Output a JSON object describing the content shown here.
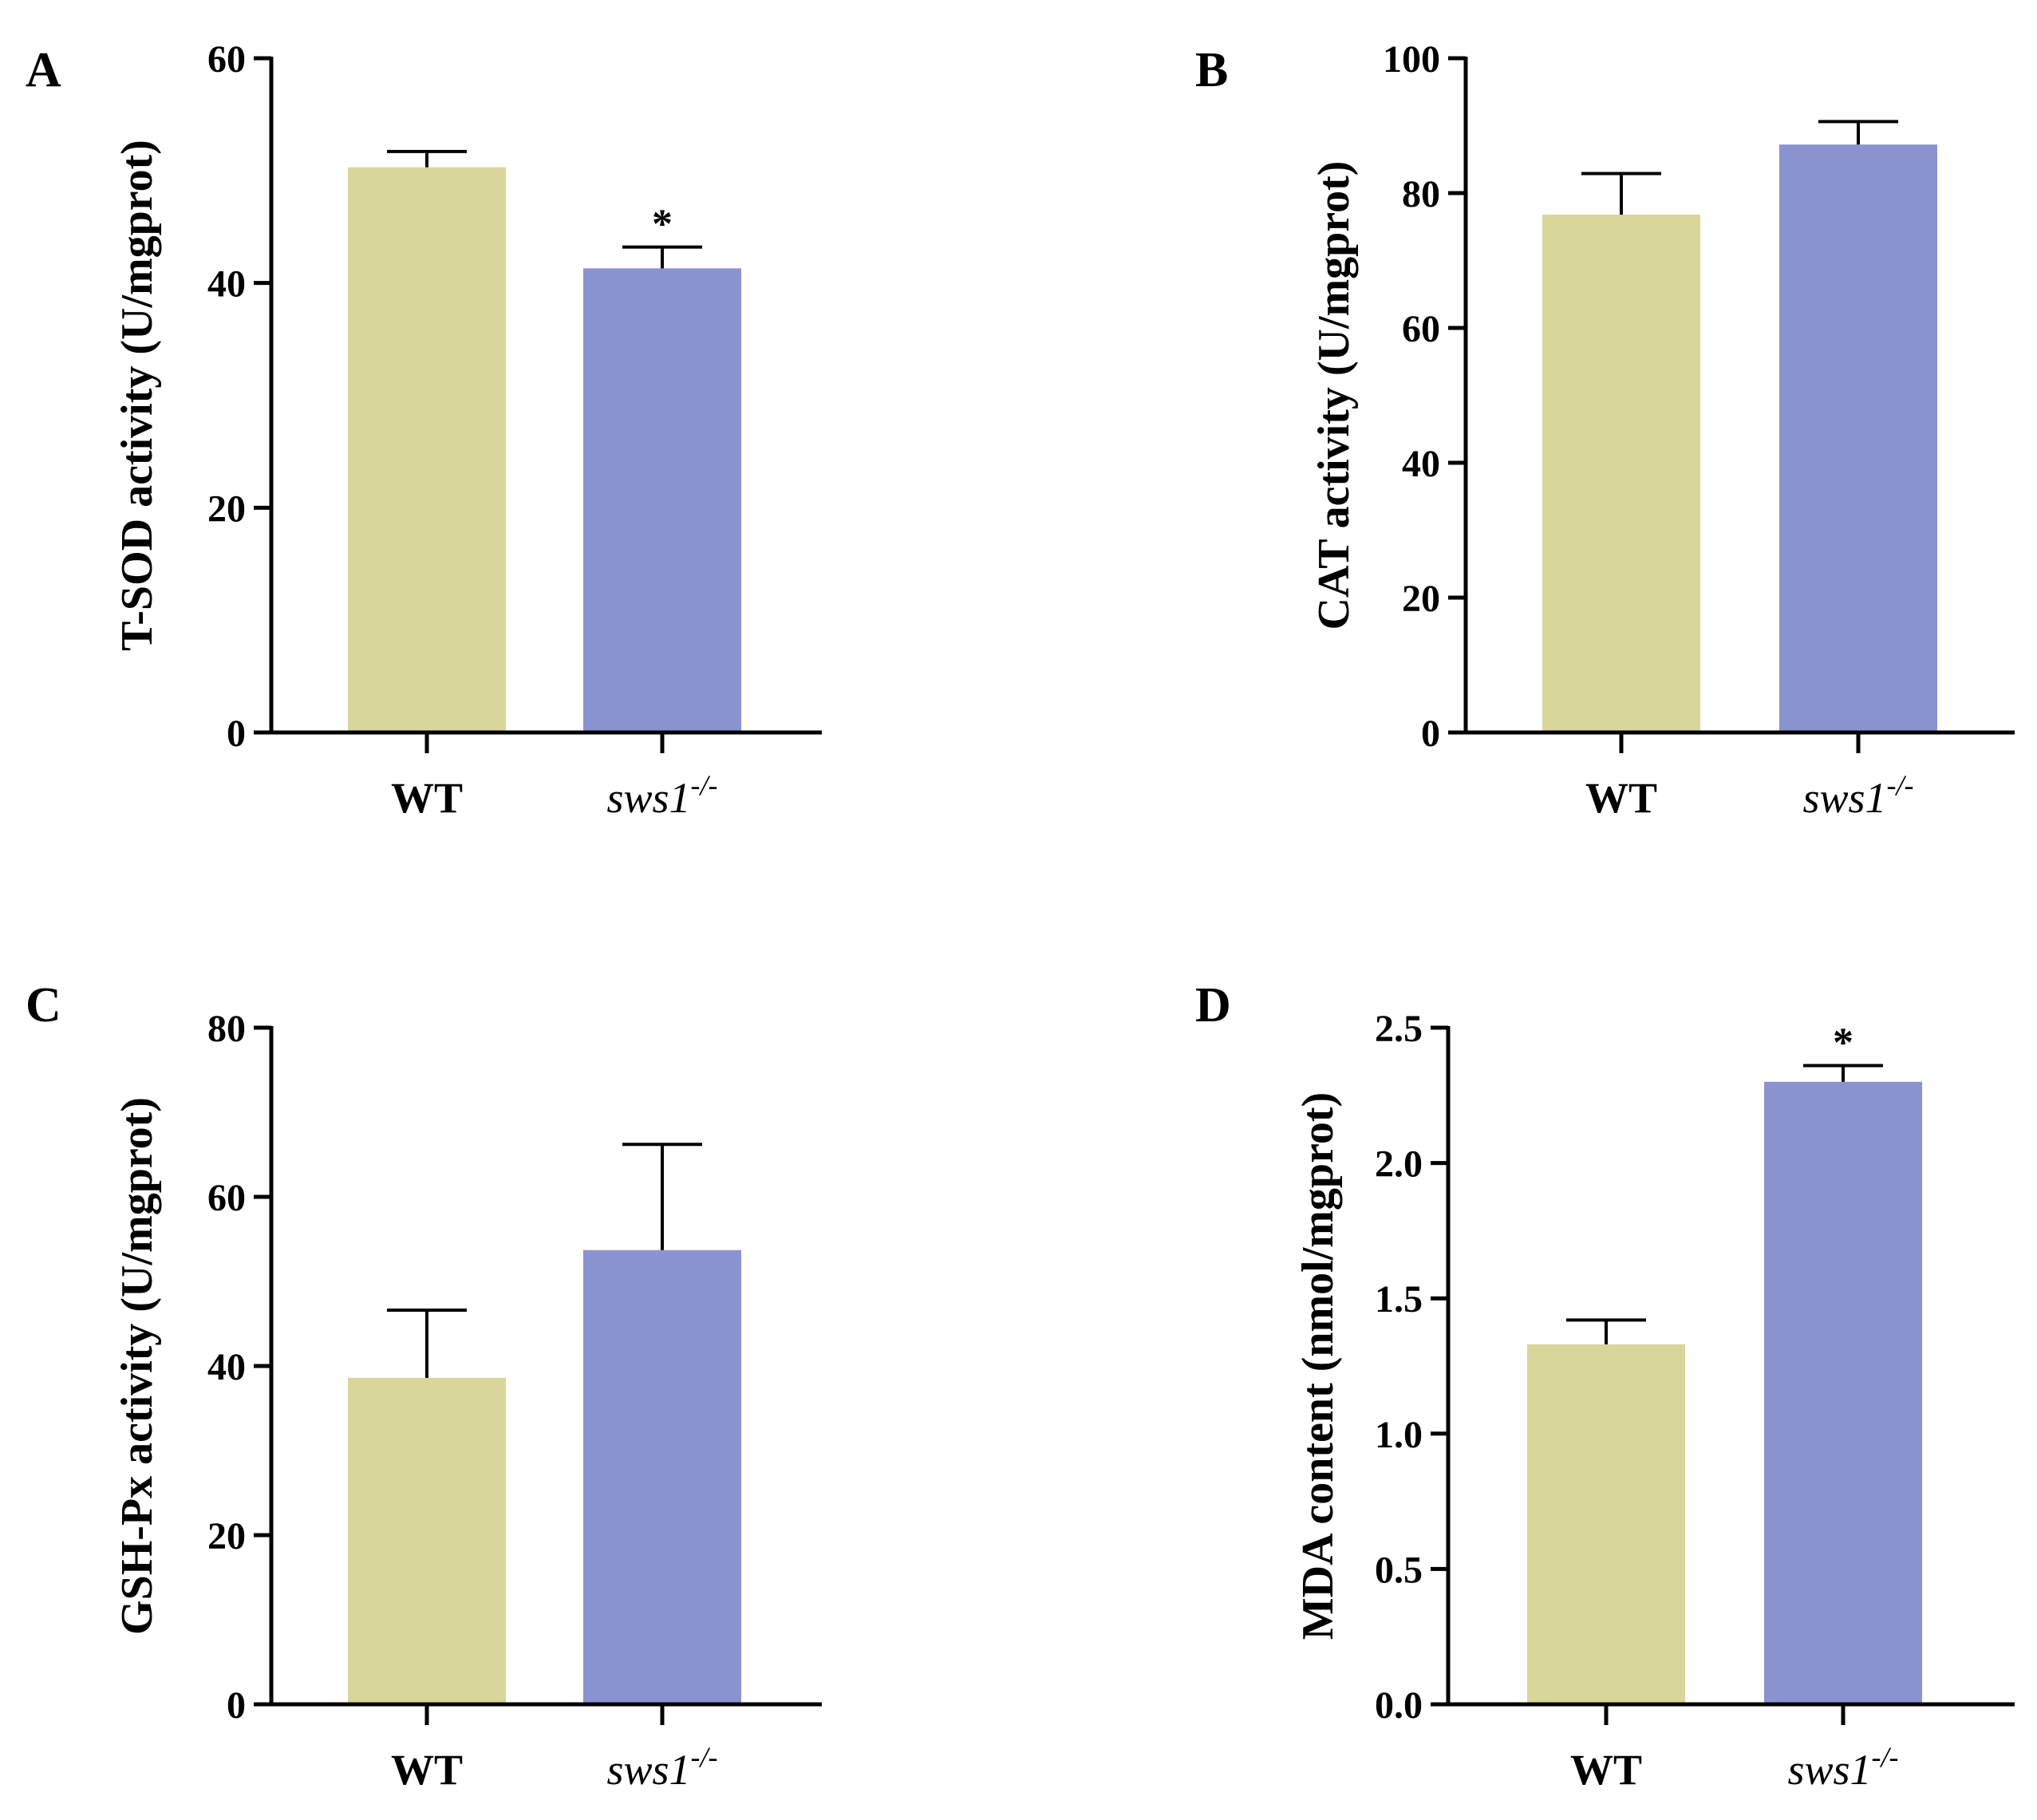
{
  "chart_data": [
    {
      "type": "bar",
      "panel": "A",
      "categories": [
        "WT",
        "sws1"
      ],
      "category_superscripts": [
        "",
        "-/-"
      ],
      "values": [
        50.3,
        41.3
      ],
      "errors": [
        1.4,
        1.9
      ],
      "significance": [
        "",
        "*"
      ],
      "ylabel": "T-SOD activity (U/mgprot)",
      "ylim": [
        0,
        60
      ],
      "yticks": [
        "0",
        "20",
        "40",
        "60"
      ],
      "tick_values": [
        0,
        20,
        40,
        60
      ],
      "colors": [
        "#d8d69a",
        "#8a92d0"
      ]
    },
    {
      "type": "bar",
      "panel": "B",
      "categories": [
        "WT",
        "sws1"
      ],
      "category_superscripts": [
        "",
        "-/-"
      ],
      "values": [
        76.8,
        87.2
      ],
      "errors": [
        6.1,
        3.4
      ],
      "significance": [
        "",
        ""
      ],
      "ylabel": "CAT activity (U/mgprot)",
      "ylim": [
        0,
        100
      ],
      "yticks": [
        "0",
        "20",
        "40",
        "60",
        "80",
        "100"
      ],
      "tick_values": [
        0,
        20,
        40,
        60,
        80,
        100
      ],
      "colors": [
        "#d8d69a",
        "#8a92d0"
      ]
    },
    {
      "type": "bar",
      "panel": "C",
      "categories": [
        "WT",
        "sws1"
      ],
      "category_superscripts": [
        "",
        "-/-"
      ],
      "values": [
        38.6,
        53.7
      ],
      "errors": [
        8.0,
        12.5
      ],
      "significance": [
        "",
        ""
      ],
      "ylabel": "GSH-Px activity (U/mgprot)",
      "ylim": [
        0,
        80
      ],
      "yticks": [
        "0",
        "20",
        "40",
        "60",
        "80"
      ],
      "tick_values": [
        0,
        20,
        40,
        60,
        80
      ],
      "colors": [
        "#d8d69a",
        "#8a92d0"
      ]
    },
    {
      "type": "bar",
      "panel": "D",
      "categories": [
        "WT",
        "sws1"
      ],
      "category_superscripts": [
        "",
        "-/-"
      ],
      "values": [
        1.33,
        2.3
      ],
      "errors": [
        0.09,
        0.06
      ],
      "significance": [
        "",
        "*"
      ],
      "ylabel": "MDA content (nmol/mgprot)",
      "ylim": [
        0,
        2.5
      ],
      "yticks": [
        "0.0",
        "0.5",
        "1.0",
        "1.5",
        "2.0",
        "2.5"
      ],
      "tick_values": [
        0,
        0.5,
        1.0,
        1.5,
        2.0,
        2.5
      ],
      "colors": [
        "#d8d69a",
        "#8a92d0"
      ]
    }
  ]
}
